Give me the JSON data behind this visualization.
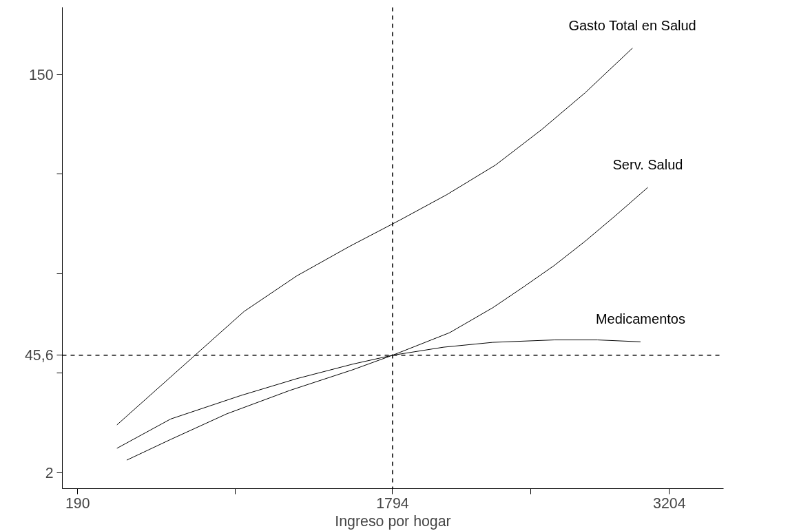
{
  "chart_data": {
    "type": "line",
    "xlabel": "Ingreso por hogar",
    "xlim": [
      112,
      3480
    ],
    "ylim": [
      -4,
      175
    ],
    "xticks": [
      190,
      {
        "value": 992,
        "label": null
      },
      1794,
      {
        "value": 2499,
        "label": null
      },
      3204
    ],
    "yticks": [
      2,
      {
        "value": 39,
        "label": null
      },
      {
        "value": 76,
        "label": null
      },
      {
        "value": 113,
        "label": null
      },
      150
    ],
    "grid": false,
    "marker": "none",
    "line_style": "solid",
    "series": [
      {
        "name": "Gasto Total en Salud",
        "color": "#000000",
        "x": [
          390,
          1038,
          1306,
          1573,
          1835,
          2070,
          2320,
          2555,
          2775,
          3016
        ],
        "values": [
          19.7,
          61.9,
          75.1,
          86.0,
          96.0,
          105.3,
          116.4,
          129.6,
          143.2,
          159.8
        ]
      },
      {
        "name": "Serv. Salud",
        "color": "#000000",
        "x": [
          440,
          664,
          949,
          1270,
          1591,
          1794,
          2085,
          2305,
          2461,
          2618,
          2775,
          2931,
          3094
        ],
        "values": [
          6.6,
          14.3,
          23.8,
          32.5,
          40.2,
          45.6,
          54.0,
          63.3,
          71.0,
          79.0,
          88.0,
          97.6,
          108.0
        ]
      },
      {
        "name": "Medicamentos",
        "color": "#000000",
        "x": [
          390,
          664,
          1020,
          1306,
          1591,
          1794,
          2054,
          2305,
          2618,
          2837,
          3057
        ],
        "values": [
          11.0,
          21.9,
          30.6,
          36.9,
          42.3,
          45.6,
          48.6,
          50.4,
          51.3,
          51.3,
          50.6
        ]
      }
    ],
    "ref_lines": [
      {
        "axis": "x",
        "value": 1794,
        "label": null,
        "line_style": "dashed"
      },
      {
        "axis": "y",
        "value": 45.6,
        "label": "45,6",
        "line_style": "dashed"
      }
    ]
  }
}
